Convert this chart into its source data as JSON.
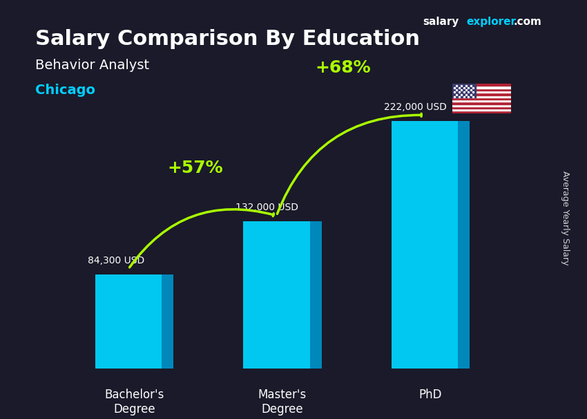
{
  "title": "Salary Comparison By Education",
  "subtitle1": "Behavior Analyst",
  "subtitle2": "Chicago",
  "categories": [
    "Bachelor's\nDegree",
    "Master's\nDegree",
    "PhD"
  ],
  "values": [
    84300,
    132000,
    222000
  ],
  "value_labels": [
    "84,300 USD",
    "132,000 USD",
    "222,000 USD"
  ],
  "bar_color_top": "#00cfff",
  "bar_color_side": "#0099cc",
  "bar_color_face": "#00b8e6",
  "pct_labels": [
    "+57%",
    "+68%"
  ],
  "pct_color": "#aaff00",
  "title_color": "#ffffff",
  "subtitle1_color": "#ffffff",
  "subtitle2_color": "#00cfff",
  "value_label_color": "#ffffff",
  "ylabel_text": "Average Yearly Salary",
  "brand_salary": "salary",
  "brand_explorer": "explorer",
  "brand_com": ".com",
  "bg_color": "#2a2a3a",
  "ylim": [
    0,
    270000
  ],
  "bar_width": 0.45
}
